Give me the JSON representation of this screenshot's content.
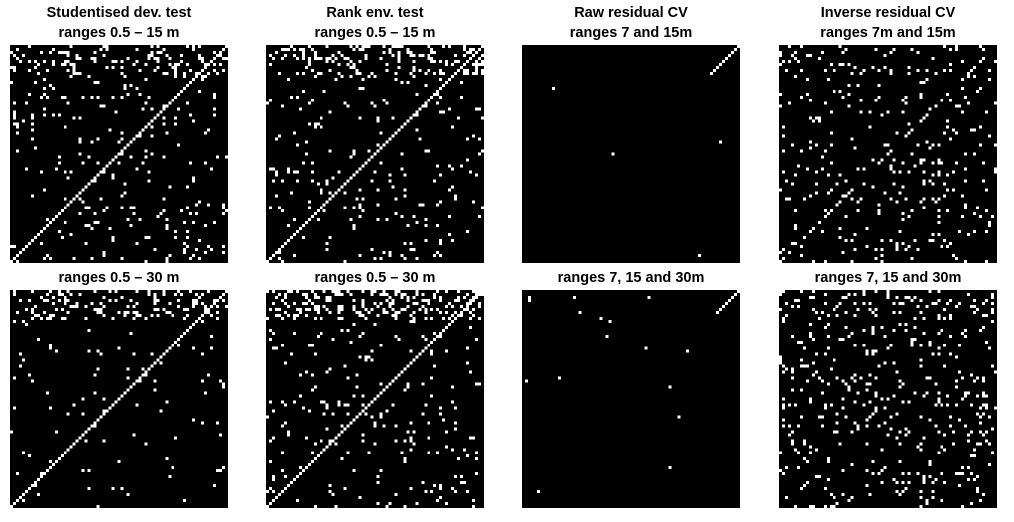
{
  "chart_data": [
    {
      "type": "heatmap",
      "title": [
        "Studentised dev. test",
        "ranges 0.5 – 15 m"
      ],
      "grid": 73,
      "values": "binary",
      "colors": {
        "0": "#000000",
        "1": "#ffffff"
      },
      "diagonal": "full",
      "density": 0.045,
      "top_density": 0.18
    },
    {
      "type": "heatmap",
      "title": [
        "Rank env. test",
        "ranges 0.5 – 15 m"
      ],
      "grid": 73,
      "values": "binary",
      "colors": {
        "0": "#000000",
        "1": "#ffffff"
      },
      "diagonal": "full",
      "density": 0.04,
      "top_density": 0.2
    },
    {
      "type": "heatmap",
      "title": [
        "Raw residual CV",
        "ranges 7 and 15m"
      ],
      "grid": 73,
      "values": "binary",
      "colors": {
        "0": "#000000",
        "1": "#ffffff"
      },
      "diagonal": "partial",
      "density": 0.0005,
      "top_density": 0.0
    },
    {
      "type": "heatmap",
      "title": [
        "Inverse residual CV",
        "ranges 7m and 15m"
      ],
      "grid": 73,
      "values": "binary",
      "colors": {
        "0": "#000000",
        "1": "#ffffff"
      },
      "diagonal": "partial",
      "density": 0.05,
      "top_density": 0.08
    },
    {
      "type": "heatmap",
      "title": [
        "ranges 0.5 – 30 m"
      ],
      "grid": 73,
      "values": "binary",
      "colors": {
        "0": "#000000",
        "1": "#ffffff"
      },
      "diagonal": "full",
      "density": 0.02,
      "top_density": 0.18
    },
    {
      "type": "heatmap",
      "title": [
        "ranges 0.5 – 30 m"
      ],
      "grid": 73,
      "values": "binary",
      "colors": {
        "0": "#000000",
        "1": "#ffffff"
      },
      "diagonal": "full",
      "density": 0.04,
      "top_density": 0.22
    },
    {
      "type": "heatmap",
      "title": [
        "ranges 7, 15 and 30m"
      ],
      "grid": 73,
      "values": "binary",
      "colors": {
        "0": "#000000",
        "1": "#ffffff"
      },
      "diagonal": "partial",
      "density": 0.002,
      "top_density": 0.01
    },
    {
      "type": "heatmap",
      "title": [
        "ranges 7, 15 and 30m"
      ],
      "grid": 73,
      "values": "binary",
      "colors": {
        "0": "#000000",
        "1": "#ffffff"
      },
      "diagonal": "partial",
      "density": 0.07,
      "top_density": 0.12
    }
  ]
}
